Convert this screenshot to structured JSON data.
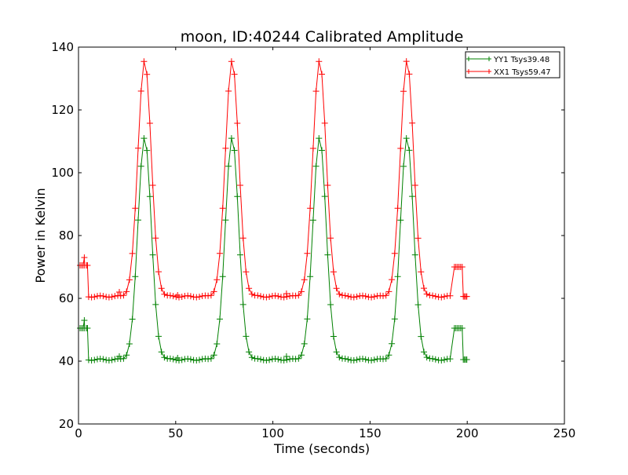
{
  "chart_data": {
    "type": "line",
    "title": "moon, ID:40244 Calibrated Amplitude",
    "xlabel": "Time (seconds)",
    "ylabel": "Power in Kelvin",
    "xlim": [
      0,
      250
    ],
    "ylim": [
      20,
      140
    ],
    "xticks": [
      0,
      50,
      100,
      150,
      200,
      250
    ],
    "yticks": [
      20,
      40,
      60,
      80,
      100,
      120,
      140
    ],
    "xtick_labels": [
      "0",
      "50",
      "100",
      "150",
      "200",
      "250"
    ],
    "ytick_labels": [
      "20",
      "40",
      "60",
      "80",
      "100",
      "120",
      "140"
    ],
    "grid": false,
    "legend_position": "top-right",
    "marker": "+",
    "peak_centers": [
      34,
      79,
      124,
      169
    ],
    "series": [
      {
        "name": "YY1 Tsys39.48",
        "color": "#008000",
        "edge_value_start": 50.5,
        "edge_value_end": 50.5,
        "baseline": 40.5,
        "peak": 111.5,
        "noise_points": [
          [
            3,
            53
          ],
          [
            21,
            41.5
          ],
          [
            51,
            41
          ],
          [
            107,
            41.5
          ]
        ]
      },
      {
        "name": "XX1 Tsys59.47",
        "color": "#ff0000",
        "edge_value_start": 70.5,
        "edge_value_end": 70.0,
        "baseline": 60.6,
        "peak": 136.0,
        "noise_points": [
          [
            3,
            73
          ],
          [
            21,
            62
          ],
          [
            51,
            61
          ],
          [
            107,
            61.5
          ]
        ]
      }
    ]
  }
}
